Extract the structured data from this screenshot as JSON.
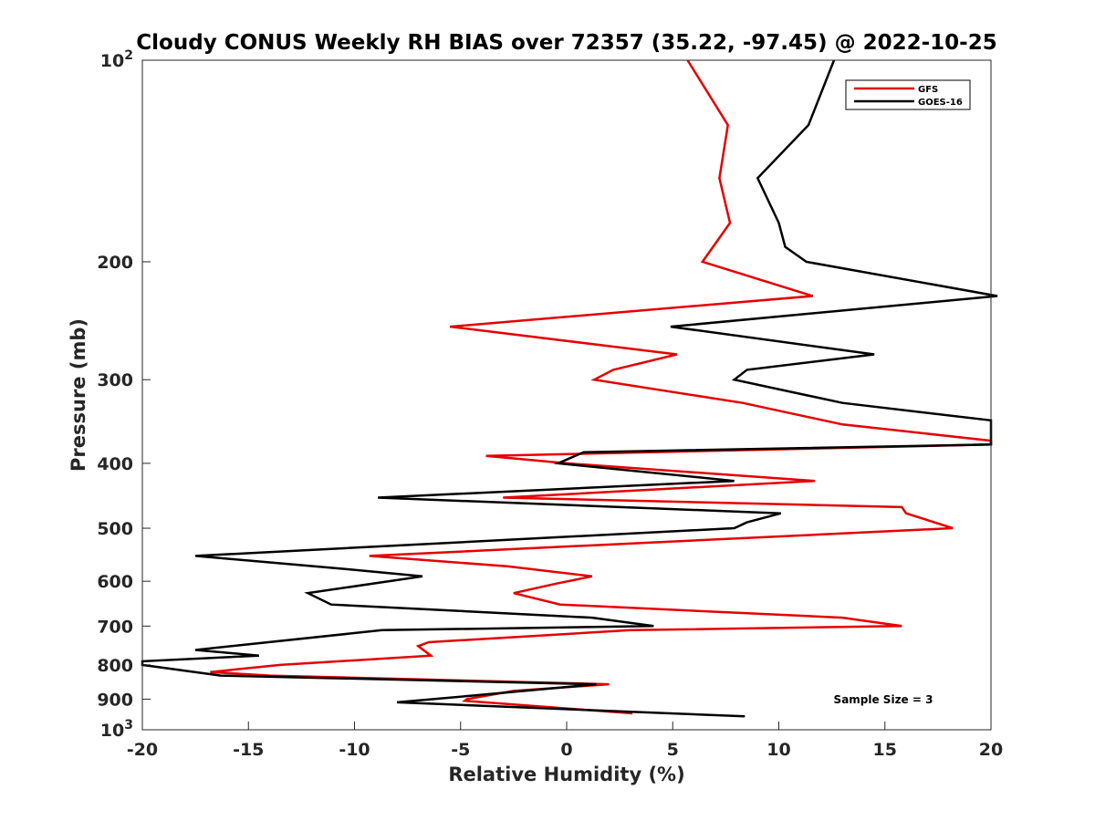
{
  "chart_data": {
    "type": "line",
    "title": "Cloudy CONUS Weekly RH BIAS over 72357 (35.22, -97.45) @ 2022-10-25",
    "xlabel": "Relative Humidity (%)",
    "ylabel": "Pressure (mb)",
    "xlim": [
      -20,
      20
    ],
    "ylim": [
      100,
      1000
    ],
    "yscale": "log",
    "y_reversed": true,
    "x_ticks": [
      "-20",
      "-15",
      "-10",
      "-5",
      "0",
      "5",
      "10",
      "15",
      "20"
    ],
    "y_ticks": [
      {
        "value": 100,
        "base": "10",
        "exp": "2"
      },
      {
        "value": 200,
        "label": "200"
      },
      {
        "value": 300,
        "label": "300"
      },
      {
        "value": 400,
        "label": "400"
      },
      {
        "value": 500,
        "label": "500"
      },
      {
        "value": 600,
        "label": "600"
      },
      {
        "value": 700,
        "label": "700"
      },
      {
        "value": 800,
        "label": "800"
      },
      {
        "value": 900,
        "label": "900"
      },
      {
        "value": 1000,
        "base": "10",
        "exp": "3"
      }
    ],
    "legend_position": "top-right",
    "grid": false,
    "annotation": "Sample Size = 3",
    "series": [
      {
        "name": "GFS",
        "color": "#e50000",
        "points": [
          [
            5.7,
            100
          ],
          [
            7.6,
            125
          ],
          [
            7.2,
            150
          ],
          [
            7.7,
            175
          ],
          [
            6.4,
            200
          ],
          [
            11.6,
            225
          ],
          [
            -5.5,
            250
          ],
          [
            5.2,
            275
          ],
          [
            2.2,
            290
          ],
          [
            1.3,
            300
          ],
          [
            8.3,
            325
          ],
          [
            13.0,
            350
          ],
          [
            20.0,
            370
          ],
          [
            20.0,
            375
          ],
          [
            -3.8,
            390
          ],
          [
            0.0,
            400
          ],
          [
            11.7,
            425
          ],
          [
            -3.0,
            450
          ],
          [
            15.8,
            465
          ],
          [
            16.0,
            475
          ],
          [
            18.2,
            500
          ],
          [
            -9.3,
            550
          ],
          [
            -2.8,
            570
          ],
          [
            1.2,
            590
          ],
          [
            -0.5,
            605
          ],
          [
            -2.5,
            625
          ],
          [
            -0.3,
            650
          ],
          [
            13.0,
            680
          ],
          [
            15.8,
            700
          ],
          [
            3.0,
            710
          ],
          [
            -6.5,
            740
          ],
          [
            -7.0,
            750
          ],
          [
            -6.4,
            775
          ],
          [
            -13.5,
            800
          ],
          [
            -16.8,
            820
          ],
          [
            -14.0,
            830
          ],
          [
            2.0,
            855
          ],
          [
            -2.5,
            875
          ],
          [
            -4.7,
            900
          ],
          [
            -4.8,
            905
          ],
          [
            3.1,
            945
          ]
        ]
      },
      {
        "name": "GOES-16",
        "color": "#000000",
        "points": [
          [
            12.6,
            100
          ],
          [
            11.4,
            125
          ],
          [
            9.0,
            150
          ],
          [
            10.0,
            175
          ],
          [
            10.3,
            190
          ],
          [
            11.3,
            200
          ],
          [
            20.3,
            225
          ],
          [
            4.9,
            250
          ],
          [
            14.5,
            275
          ],
          [
            8.5,
            290
          ],
          [
            7.9,
            300
          ],
          [
            13.0,
            325
          ],
          [
            20.0,
            345
          ],
          [
            20.0,
            375
          ],
          [
            0.8,
            385
          ],
          [
            -0.4,
            400
          ],
          [
            7.9,
            425
          ],
          [
            -8.9,
            450
          ],
          [
            10.1,
            475
          ],
          [
            8.5,
            490
          ],
          [
            7.9,
            500
          ],
          [
            -17.5,
            550
          ],
          [
            -10.5,
            575
          ],
          [
            -6.8,
            590
          ],
          [
            -12.2,
            625
          ],
          [
            -11.1,
            650
          ],
          [
            1.2,
            680
          ],
          [
            4.1,
            700
          ],
          [
            -8.7,
            710
          ],
          [
            -17.5,
            760
          ],
          [
            -14.5,
            775
          ],
          [
            -20.0,
            790
          ],
          [
            -20.0,
            800
          ],
          [
            -16.3,
            830
          ],
          [
            1.4,
            855
          ],
          [
            -4.6,
            890
          ],
          [
            -8.0,
            910
          ],
          [
            8.4,
            955
          ]
        ]
      }
    ]
  }
}
